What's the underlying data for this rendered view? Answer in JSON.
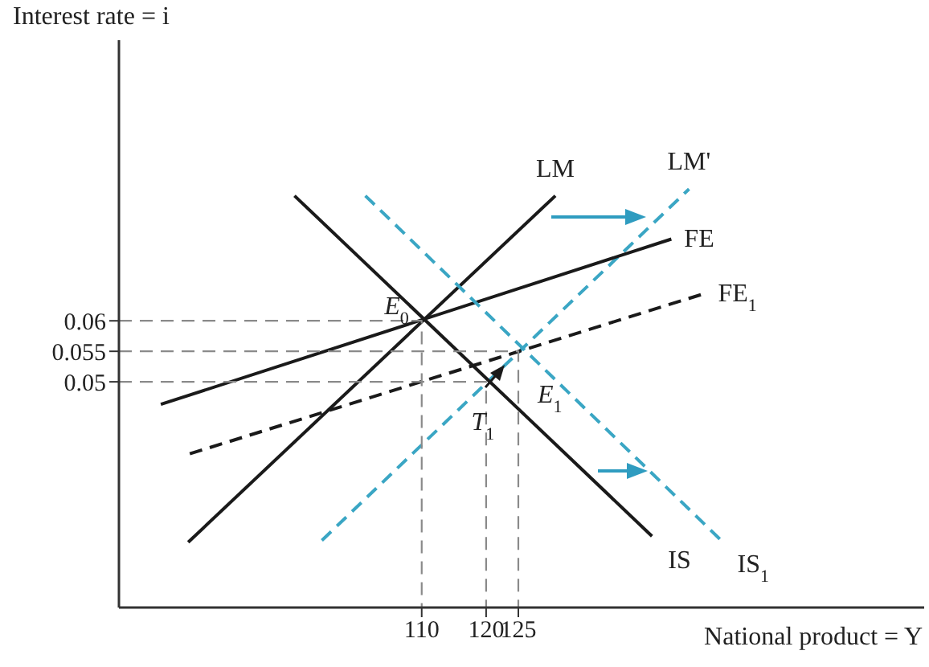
{
  "chart_data": {
    "type": "line",
    "xlabel": "National product = Y",
    "ylabel": "Interest rate = i",
    "xlim": [
      63,
      188
    ],
    "ylim": [
      0.013,
      0.106
    ],
    "xticks": [
      110,
      120,
      125
    ],
    "yticks": [
      0.05,
      0.055,
      0.06
    ],
    "series": [
      {
        "name": "LM",
        "color": "#1a1a1a",
        "line_style": "solid",
        "x": [
          73.75,
          130.75
        ],
        "values": [
          0.0237,
          0.0805
        ]
      },
      {
        "name": "LM'",
        "color": "#3aa6c4",
        "line_style": "dashed",
        "x": [
          94.5,
          151.5
        ],
        "values": [
          0.024,
          0.0816
        ]
      },
      {
        "name": "FE",
        "color": "#1a1a1a",
        "line_style": "solid",
        "x": [
          69.5,
          148.75
        ],
        "values": [
          0.0463,
          0.0734
        ]
      },
      {
        "name": "FE$_{1}$",
        "color": "#1a1a1a",
        "line_style": "dashed",
        "x": [
          74,
          154
        ],
        "values": [
          0.0382,
          0.0645
        ]
      },
      {
        "name": "IS",
        "color": "#1a1a1a",
        "line_style": "solid",
        "x": [
          90.25,
          145.75
        ],
        "values": [
          0.0805,
          0.0247
        ]
      },
      {
        "name": "IS$_{1}$",
        "color": "#3aa6c4",
        "line_style": "dashed",
        "x": [
          101.25,
          156.5
        ],
        "values": [
          0.0805,
          0.024
        ]
      },
      {
        "color": "#8a8a8a",
        "line_style": "dashed",
        "x": [
          63,
          110,
          110
        ],
        "values": [
          0.06,
          0.06,
          0.013
        ]
      },
      {
        "color": "#8a8a8a",
        "line_style": "dashed",
        "x": [
          63,
          120,
          120
        ],
        "values": [
          0.05,
          0.05,
          0.013
        ]
      },
      {
        "color": "#8a8a8a",
        "line_style": "dashed",
        "x": [
          63,
          125,
          125
        ],
        "values": [
          0.055,
          0.055,
          0.013
        ]
      }
    ],
    "annotations": [
      {
        "text": "E$_{0}$",
        "x": 110,
        "y": 0.06
      },
      {
        "text": "E$_{1}$",
        "x": 125,
        "y": 0.055
      },
      {
        "text": "T$_{1}$",
        "x": 120,
        "y": 0.05
      }
    ]
  }
}
